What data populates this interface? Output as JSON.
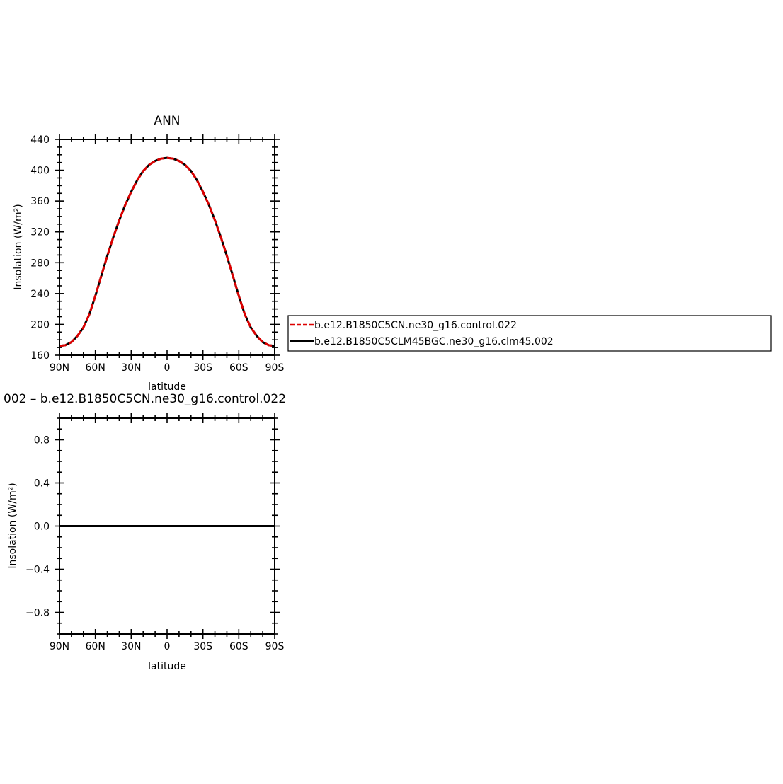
{
  "chart_data": [
    {
      "type": "line",
      "title": "ANN",
      "xlabel": "latitude",
      "ylabel": "Insolation (W/m²)",
      "xlim": [
        -90,
        90
      ],
      "ylim": [
        160,
        440
      ],
      "xticks": [
        -90,
        -60,
        -30,
        0,
        30,
        60,
        90
      ],
      "xtick_labels": [
        "90N",
        "60N",
        "30N",
        "0",
        "30S",
        "60S",
        "90S"
      ],
      "yticks": [
        160,
        200,
        240,
        280,
        320,
        360,
        400,
        440
      ],
      "ytick_labels": [
        "160",
        "200",
        "240",
        "280",
        "320",
        "360",
        "400",
        "440"
      ],
      "x": [
        -90,
        -85,
        -80,
        -75,
        -70,
        -65,
        -60,
        -55,
        -50,
        -45,
        -40,
        -35,
        -30,
        -25,
        -20,
        -15,
        -10,
        -5,
        0,
        5,
        10,
        15,
        20,
        25,
        30,
        35,
        40,
        45,
        50,
        55,
        60,
        65,
        70,
        75,
        80,
        85,
        90
      ],
      "series": [
        {
          "name": "b.e12.B1850C5CN.ne30_g16.control.022",
          "color": "#dd0000",
          "dash": "dashed",
          "values": [
            172,
            173,
            177,
            185,
            196,
            213,
            237,
            263,
            289,
            313,
            335,
            355,
            372,
            387,
            399,
            407,
            412,
            415,
            416,
            415,
            412,
            407,
            399,
            387,
            372,
            355,
            335,
            313,
            289,
            263,
            237,
            213,
            196,
            185,
            177,
            173,
            172
          ]
        },
        {
          "name": "b.e12.B1850C5CLM45BGC.ne30_g16.clm45.002",
          "color": "#000000",
          "dash": "solid",
          "values": [
            172,
            173,
            177,
            185,
            196,
            213,
            237,
            263,
            289,
            313,
            335,
            355,
            372,
            387,
            399,
            407,
            412,
            415,
            416,
            415,
            412,
            407,
            399,
            387,
            372,
            355,
            335,
            313,
            289,
            263,
            237,
            213,
            196,
            185,
            177,
            173,
            172
          ]
        }
      ],
      "legend": "right"
    },
    {
      "type": "line",
      "title": "002 – b.e12.B1850C5CN.ne30_g16.control.022",
      "xlabel": "latitude",
      "ylabel": "Insolation (W/m²)",
      "xlim": [
        -90,
        90
      ],
      "ylim": [
        -1,
        1
      ],
      "xticks": [
        -90,
        -60,
        -30,
        0,
        30,
        60,
        90
      ],
      "xtick_labels": [
        "90N",
        "60N",
        "30N",
        "0",
        "30S",
        "60S",
        "90S"
      ],
      "yticks": [
        -0.8,
        -0.4,
        0.0,
        0.4,
        0.8
      ],
      "ytick_labels": [
        "−0.8",
        "−0.4",
        "0.0",
        "0.4",
        "0.8"
      ],
      "x": [
        -90,
        0,
        90
      ],
      "series": [
        {
          "name": "",
          "color": "#000000",
          "dash": "solid",
          "values": [
            0,
            0,
            0
          ]
        }
      ]
    }
  ]
}
